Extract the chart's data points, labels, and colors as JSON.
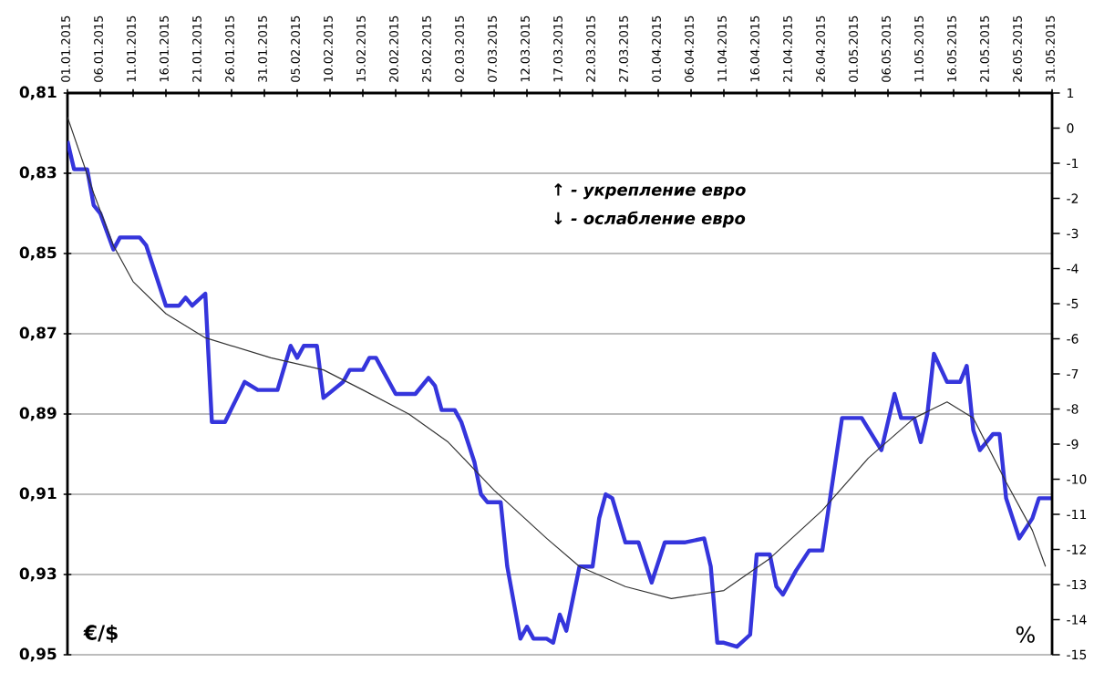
{
  "chart_data": {
    "type": "line",
    "ylabel": "€/$",
    "y2label": "%",
    "annotations": [
      "↑ - укрепление евро",
      "↓ - ослабление евро"
    ],
    "xlim": [
      "2015-01-01",
      "2015-05-31"
    ],
    "xticks": [
      {
        "value": "2015-01-01",
        "label": "01.01.2015"
      },
      {
        "value": "2015-01-06",
        "label": "06.01.2015"
      },
      {
        "value": "2015-01-11",
        "label": "11.01.2015"
      },
      {
        "value": "2015-01-16",
        "label": "16.01.2015"
      },
      {
        "value": "2015-01-21",
        "label": "21.01.2015"
      },
      {
        "value": "2015-01-26",
        "label": "26.01.2015"
      },
      {
        "value": "2015-01-31",
        "label": "31.01.2015"
      },
      {
        "value": "2015-02-05",
        "label": "05.02.2015"
      },
      {
        "value": "2015-02-10",
        "label": "10.02.2015"
      },
      {
        "value": "2015-02-15",
        "label": "15.02.2015"
      },
      {
        "value": "2015-02-20",
        "label": "20.02.2015"
      },
      {
        "value": "2015-02-25",
        "label": "25.02.2015"
      },
      {
        "value": "2015-03-02",
        "label": "02.03.2015"
      },
      {
        "value": "2015-03-07",
        "label": "07.03.2015"
      },
      {
        "value": "2015-03-12",
        "label": "12.03.2015"
      },
      {
        "value": "2015-03-17",
        "label": "17.03.2015"
      },
      {
        "value": "2015-03-22",
        "label": "22.03.2015"
      },
      {
        "value": "2015-03-27",
        "label": "27.03.2015"
      },
      {
        "value": "2015-04-01",
        "label": "01.04.2015"
      },
      {
        "value": "2015-04-06",
        "label": "06.04.2015"
      },
      {
        "value": "2015-04-11",
        "label": "11.04.2015"
      },
      {
        "value": "2015-04-16",
        "label": "16.04.2015"
      },
      {
        "value": "2015-04-21",
        "label": "21.04.2015"
      },
      {
        "value": "2015-04-26",
        "label": "26.04.2015"
      },
      {
        "value": "2015-05-01",
        "label": "01.05.2015"
      },
      {
        "value": "2015-05-06",
        "label": "06.05.2015"
      },
      {
        "value": "2015-05-11",
        "label": "11.05.2015"
      },
      {
        "value": "2015-05-16",
        "label": "16.05.2015"
      },
      {
        "value": "2015-05-21",
        "label": "21.05.2015"
      },
      {
        "value": "2015-05-26",
        "label": "26.05.2015"
      },
      {
        "value": "2015-05-31",
        "label": "31.05.2015"
      }
    ],
    "ylim": [
      0.95,
      0.81
    ],
    "yticks": [
      {
        "value": 0.81,
        "label": "0,81"
      },
      {
        "value": 0.83,
        "label": "0,83"
      },
      {
        "value": 0.85,
        "label": "0,85"
      },
      {
        "value": 0.87,
        "label": "0,87"
      },
      {
        "value": 0.89,
        "label": "0,89"
      },
      {
        "value": 0.91,
        "label": "0,91"
      },
      {
        "value": 0.93,
        "label": "0,93"
      },
      {
        "value": 0.95,
        "label": "0,95"
      }
    ],
    "y2lim": [
      -15,
      1
    ],
    "y2ticks": [
      1,
      0,
      -1,
      -2,
      -3,
      -4,
      -5,
      -6,
      -7,
      -8,
      -9,
      -10,
      -11,
      -12,
      -13,
      -14,
      -15
    ],
    "grid": "y",
    "series": [
      {
        "color": "#3535dc",
        "x": [
          "2015-01-01",
          "2015-01-02",
          "2015-01-04",
          "2015-01-05",
          "2015-01-06",
          "2015-01-08",
          "2015-01-09",
          "2015-01-12",
          "2015-01-13",
          "2015-01-14",
          "2015-01-16",
          "2015-01-18",
          "2015-01-19",
          "2015-01-20",
          "2015-01-22",
          "2015-01-23",
          "2015-01-25",
          "2015-01-28",
          "2015-01-30",
          "2015-02-02",
          "2015-02-04",
          "2015-02-05",
          "2015-02-06",
          "2015-02-08",
          "2015-02-09",
          "2015-02-12",
          "2015-02-13",
          "2015-02-15",
          "2015-02-16",
          "2015-02-17",
          "2015-02-18",
          "2015-02-20",
          "2015-02-23",
          "2015-02-25",
          "2015-02-26",
          "2015-02-27",
          "2015-03-01",
          "2015-03-02",
          "2015-03-04",
          "2015-03-05",
          "2015-03-06",
          "2015-03-08",
          "2015-03-09",
          "2015-03-11",
          "2015-03-12",
          "2015-03-13",
          "2015-03-15",
          "2015-03-16",
          "2015-03-17",
          "2015-03-18",
          "2015-03-20",
          "2015-03-22",
          "2015-03-23",
          "2015-03-24",
          "2015-03-25",
          "2015-03-27",
          "2015-03-29",
          "2015-03-31",
          "2015-04-02",
          "2015-04-05",
          "2015-04-08",
          "2015-04-09",
          "2015-04-10",
          "2015-04-11",
          "2015-04-13",
          "2015-04-15",
          "2015-04-16",
          "2015-04-18",
          "2015-04-19",
          "2015-04-20",
          "2015-04-22",
          "2015-04-24",
          "2015-04-26",
          "2015-04-29",
          "2015-05-02",
          "2015-05-05",
          "2015-05-07",
          "2015-05-08",
          "2015-05-10",
          "2015-05-11",
          "2015-05-12",
          "2015-05-13",
          "2015-05-15",
          "2015-05-17",
          "2015-05-18",
          "2015-05-19",
          "2015-05-20",
          "2015-05-22",
          "2015-05-23",
          "2015-05-24",
          "2015-05-26",
          "2015-05-28",
          "2015-05-29",
          "2015-05-31"
        ],
        "values": [
          0.822,
          0.829,
          0.829,
          0.838,
          0.84,
          0.849,
          0.846,
          0.846,
          0.848,
          0.853,
          0.863,
          0.863,
          0.861,
          0.863,
          0.86,
          0.892,
          0.892,
          0.882,
          0.884,
          0.884,
          0.873,
          0.876,
          0.873,
          0.873,
          0.886,
          0.882,
          0.879,
          0.879,
          0.876,
          0.876,
          0.879,
          0.885,
          0.885,
          0.881,
          0.883,
          0.889,
          0.889,
          0.892,
          0.902,
          0.91,
          0.912,
          0.912,
          0.928,
          0.946,
          0.943,
          0.946,
          0.946,
          0.947,
          0.94,
          0.944,
          0.928,
          0.928,
          0.916,
          0.91,
          0.911,
          0.922,
          0.922,
          0.932,
          0.922,
          0.922,
          0.921,
          0.928,
          0.947,
          0.947,
          0.948,
          0.945,
          0.925,
          0.925,
          0.933,
          0.935,
          0.929,
          0.924,
          0.924,
          0.891,
          0.891,
          0.899,
          0.885,
          0.891,
          0.891,
          0.897,
          0.89,
          0.875,
          0.882,
          0.882,
          0.878,
          0.894,
          0.899,
          0.895,
          0.895,
          0.911,
          0.921,
          0.916,
          0.911,
          0.911
        ]
      },
      {
        "color": "#333333",
        "x": [
          "2015-01-01",
          "2015-01-05",
          "2015-01-08",
          "2015-01-11",
          "2015-01-16",
          "2015-01-22",
          "2015-02-01",
          "2015-02-09",
          "2015-02-15",
          "2015-02-22",
          "2015-02-28",
          "2015-03-07",
          "2015-03-15",
          "2015-03-20",
          "2015-03-27",
          "2015-04-03",
          "2015-04-11",
          "2015-04-18",
          "2015-04-26",
          "2015-05-03",
          "2015-05-10",
          "2015-05-15",
          "2015-05-19",
          "2015-05-24",
          "2015-05-28",
          "2015-05-30"
        ],
        "values": [
          0.816,
          0.835,
          0.848,
          0.857,
          0.865,
          0.871,
          0.876,
          0.879,
          0.884,
          0.89,
          0.897,
          0.909,
          0.921,
          0.928,
          0.933,
          0.936,
          0.934,
          0.926,
          0.914,
          0.901,
          0.891,
          0.887,
          0.891,
          0.907,
          0.919,
          0.928
        ]
      }
    ]
  }
}
